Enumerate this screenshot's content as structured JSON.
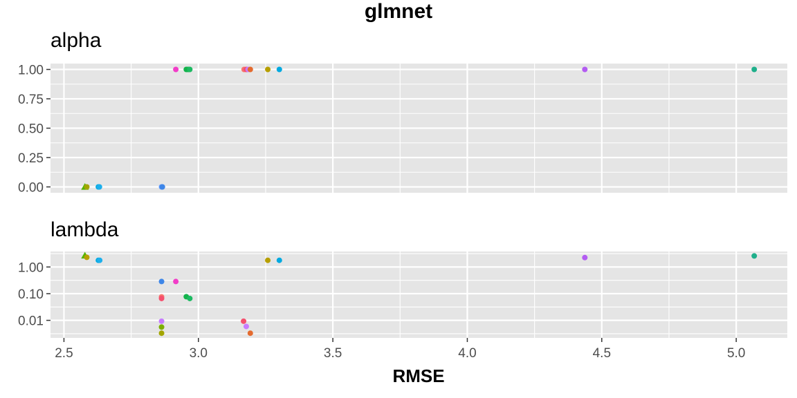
{
  "chart_data": {
    "type": "scatter",
    "title": "glmnet",
    "xlabel": "RMSE",
    "xlim": [
      2.45,
      5.19
    ],
    "x_ticks": [
      2.5,
      3.0,
      3.5,
      4.0,
      4.5,
      5.0
    ],
    "x_tick_labels": [
      "2.5",
      "3.0",
      "3.5",
      "4.0",
      "4.5",
      "5.0"
    ],
    "grid": true,
    "legend": "none",
    "panels": [
      {
        "name": "alpha",
        "scale": "linear",
        "ylim": [
          -0.05,
          1.05
        ],
        "y_ticks": [
          0,
          0.25,
          0.5,
          0.75,
          1.0
        ],
        "y_tick_labels": [
          "0.00",
          "0.25",
          "0.50",
          "0.75",
          "1.00"
        ],
        "points": [
          {
            "x": 2.916,
            "y": 1.0,
            "color": "#F23DC8",
            "shape": "circle"
          },
          {
            "x": 2.955,
            "y": 1.0,
            "color": "#13B34B",
            "shape": "circle"
          },
          {
            "x": 2.962,
            "y": 1.0,
            "color": "#13B34B",
            "shape": "circle"
          },
          {
            "x": 2.968,
            "y": 1.0,
            "color": "#1DBA62",
            "shape": "circle"
          },
          {
            "x": 3.17,
            "y": 1.0,
            "color": "#F8766D",
            "shape": "circle"
          },
          {
            "x": 3.178,
            "y": 1.0,
            "color": "#F5506E",
            "shape": "circle"
          },
          {
            "x": 3.185,
            "y": 1.0,
            "color": "#C77CFF",
            "shape": "circle"
          },
          {
            "x": 3.193,
            "y": 1.0,
            "color": "#E46B2F",
            "shape": "circle"
          },
          {
            "x": 3.258,
            "y": 1.0,
            "color": "#B79F00",
            "shape": "circle"
          },
          {
            "x": 3.301,
            "y": 1.0,
            "color": "#00A9E0",
            "shape": "circle"
          },
          {
            "x": 4.437,
            "y": 1.0,
            "color": "#B35CF2",
            "shape": "circle"
          },
          {
            "x": 5.067,
            "y": 1.0,
            "color": "#1FAF8B",
            "shape": "circle"
          },
          {
            "x": 2.578,
            "y": 0.0,
            "color": "#53B400",
            "shape": "triangle"
          },
          {
            "x": 2.585,
            "y": 0.0,
            "color": "#A3A500",
            "shape": "circle"
          },
          {
            "x": 2.628,
            "y": 0.0,
            "color": "#00A9E0",
            "shape": "circle"
          },
          {
            "x": 2.632,
            "y": 0.0,
            "color": "#1CAFEC",
            "shape": "circle"
          },
          {
            "x": 2.863,
            "y": 0.0,
            "color": "#619CFF",
            "shape": "circle"
          },
          {
            "x": 2.866,
            "y": 0.0,
            "color": "#3E86E8",
            "shape": "circle"
          }
        ]
      },
      {
        "name": "lambda",
        "scale": "log10",
        "ylim": [
          0.0022,
          3.8
        ],
        "y_ticks": [
          0.01,
          0.1,
          1.0
        ],
        "y_tick_labels": [
          "0.01",
          "0.10",
          "1.00"
        ],
        "points": [
          {
            "x": 2.578,
            "y": 2.65,
            "color": "#53B400",
            "shape": "triangle"
          },
          {
            "x": 2.585,
            "y": 2.3,
            "color": "#B79F00",
            "shape": "circle"
          },
          {
            "x": 2.628,
            "y": 1.78,
            "color": "#00A9E0",
            "shape": "circle"
          },
          {
            "x": 2.633,
            "y": 1.78,
            "color": "#1CAFEC",
            "shape": "circle"
          },
          {
            "x": 2.863,
            "y": 0.285,
            "color": "#3E86E8",
            "shape": "circle"
          },
          {
            "x": 2.863,
            "y": 0.076,
            "color": "#F8766D",
            "shape": "circle"
          },
          {
            "x": 2.863,
            "y": 0.066,
            "color": "#F5506E",
            "shape": "circle"
          },
          {
            "x": 2.863,
            "y": 0.0093,
            "color": "#C77CFF",
            "shape": "circle"
          },
          {
            "x": 2.863,
            "y": 0.0056,
            "color": "#7CAE00",
            "shape": "circle"
          },
          {
            "x": 2.863,
            "y": 0.0033,
            "color": "#A3A500",
            "shape": "circle"
          },
          {
            "x": 2.916,
            "y": 0.285,
            "color": "#F23DC8",
            "shape": "circle"
          },
          {
            "x": 2.955,
            "y": 0.077,
            "color": "#13B34B",
            "shape": "circle"
          },
          {
            "x": 2.968,
            "y": 0.066,
            "color": "#1DBA62",
            "shape": "circle"
          },
          {
            "x": 3.168,
            "y": 0.0093,
            "color": "#F5506E",
            "shape": "circle"
          },
          {
            "x": 3.178,
            "y": 0.0059,
            "color": "#C77CFF",
            "shape": "circle"
          },
          {
            "x": 3.193,
            "y": 0.0033,
            "color": "#E46B2F",
            "shape": "circle"
          },
          {
            "x": 3.258,
            "y": 1.78,
            "color": "#B79F00",
            "shape": "circle"
          },
          {
            "x": 3.301,
            "y": 1.78,
            "color": "#00A9E0",
            "shape": "circle"
          },
          {
            "x": 4.437,
            "y": 2.25,
            "color": "#B35CF2",
            "shape": "circle"
          },
          {
            "x": 5.067,
            "y": 2.6,
            "color": "#1FAF8B",
            "shape": "circle"
          }
        ]
      }
    ]
  }
}
